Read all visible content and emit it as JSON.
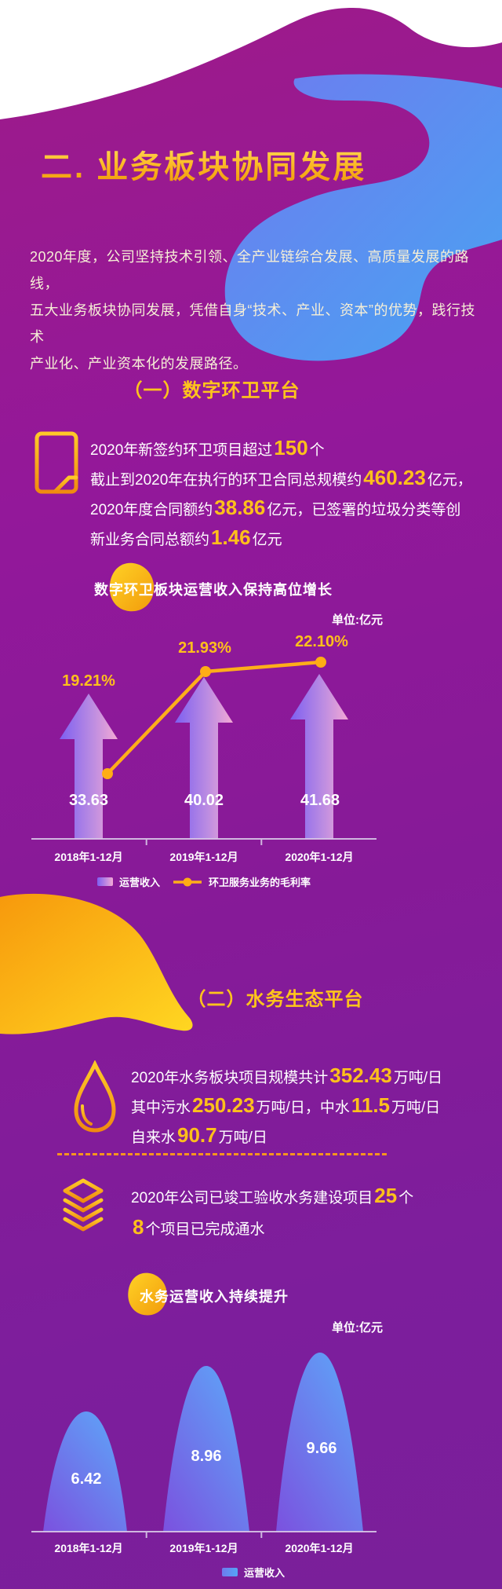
{
  "page_title": "二. 业务板块协同发展",
  "intro_runs": [
    {
      "t": "2020年度，公司坚持技术引领、全产业链综合发展、高质量发展的路线，"
    },
    {
      "br": true
    },
    {
      "t": "五大业务板块协同发展，凭借自身“技术、产业、资本”的优势，践行技术"
    },
    {
      "br": true
    },
    {
      "t": "产业化、产业资本化的发展路径。"
    }
  ],
  "sections": {
    "s1": {
      "heading": "（一）数字环卫平台",
      "icon": "document-icon",
      "stats_runs": [
        {
          "t": "2020年新签约环卫项目超过"
        },
        {
          "t": "150",
          "em": true
        },
        {
          "t": "个"
        },
        {
          "br": true
        },
        {
          "t": "截止到2020年在执行的环卫合同总规模约"
        },
        {
          "t": "460.23",
          "em": true
        },
        {
          "t": "亿元，"
        },
        {
          "br": true
        },
        {
          "t": "2020年度合同额约"
        },
        {
          "t": "38.86",
          "em": true
        },
        {
          "t": "亿元，已签署的垃圾分类等创"
        },
        {
          "br": true
        },
        {
          "t": "新业务合同总额约"
        },
        {
          "t": "1.46",
          "em": true
        },
        {
          "t": "亿元"
        }
      ]
    },
    "s2": {
      "heading": "（二）水务生态平台",
      "icon_water": "water-drop-icon",
      "icon_layers": "layers-icon",
      "water_runs": [
        {
          "t": "2020年水务板块项目规模共计"
        },
        {
          "t": "352.43",
          "em": true
        },
        {
          "t": "万吨/日"
        },
        {
          "br": true
        },
        {
          "t": "其中污水"
        },
        {
          "t": "250.23",
          "em": true
        },
        {
          "t": "万吨/日，中水"
        },
        {
          "t": "11.5",
          "em": true
        },
        {
          "t": "万吨/日"
        },
        {
          "br": true
        },
        {
          "t": "自来水"
        },
        {
          "t": "90.7",
          "em": true
        },
        {
          "t": "万吨/日"
        }
      ],
      "build_runs": [
        {
          "t": "2020年公司已竣工验收水务建设项目"
        },
        {
          "t": "25",
          "em": true
        },
        {
          "t": "个"
        },
        {
          "br": true
        },
        {
          "t": "8",
          "em": true
        },
        {
          "t": "个项目已完成通水"
        }
      ]
    }
  },
  "chart_data": [
    {
      "type": "bar",
      "title": "数字环卫板块运营收入保持高位增长",
      "unit_label": "单位:亿元",
      "categories": [
        "2018年1-12月",
        "2019年1-12月",
        "2020年1-12月"
      ],
      "series": [
        {
          "name": "运营收入",
          "type": "bar",
          "values": [
            33.63,
            40.02,
            41.68
          ]
        },
        {
          "name": "环卫服务业务的毛利率",
          "type": "line",
          "values": [
            19.21,
            21.93,
            22.1
          ]
        }
      ],
      "value_labels": [
        "33.63",
        "40.02",
        "41.68"
      ],
      "percent_labels": [
        "19.21%",
        "21.93%",
        "22.10%"
      ],
      "legend_position": "bottom",
      "grid": false
    },
    {
      "type": "area",
      "title": "水务运营收入持续提升",
      "unit_label": "单位:亿元",
      "categories": [
        "2018年1-12月",
        "2019年1-12月",
        "2020年1-12月"
      ],
      "series": [
        {
          "name": "运营收入",
          "type": "area",
          "values": [
            6.42,
            8.96,
            9.66
          ]
        }
      ],
      "value_labels": [
        "6.42",
        "8.96",
        "9.66"
      ],
      "legend_position": "bottom",
      "grid": false
    }
  ],
  "colors": {
    "accent_yellow": "#FFC01B",
    "accent_orange": "#F7941E",
    "bar_gradient": [
      "#7D5FF1",
      "#F3A9D5"
    ],
    "line_color": "#FFAE1A",
    "dome_gradient": [
      "#7B51DF",
      "#5EA4F8"
    ],
    "background_purple": "#871A98",
    "blob_blue": "#4F8EF7"
  }
}
